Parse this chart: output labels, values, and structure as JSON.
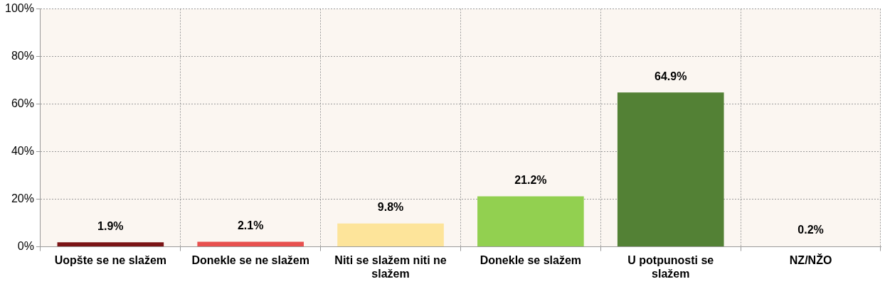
{
  "chart_data": {
    "type": "bar",
    "categories": [
      "Uopšte se ne slažem",
      "Donekle se ne slažem",
      "Niti se slažem niti ne slažem",
      "Donekle se slažem",
      "U potpunosti se slažem",
      "NZ/NŽO"
    ],
    "values": [
      1.9,
      2.1,
      9.8,
      21.2,
      64.9,
      0.2
    ],
    "colors": [
      "#7b1416",
      "#e8504f",
      "#fde49a",
      "#92d050",
      "#538135",
      "#a6a6a6"
    ],
    "value_labels": [
      "1.9%",
      "2.1%",
      "9.8%",
      "21.2%",
      "64.9%",
      "0.2%"
    ],
    "ylim": [
      0,
      100
    ],
    "yticks": [
      {
        "value": 0,
        "label": "0%"
      },
      {
        "value": 20,
        "label": "20%"
      },
      {
        "value": 40,
        "label": "40%"
      },
      {
        "value": 60,
        "label": "60%"
      },
      {
        "value": 80,
        "label": "80%"
      },
      {
        "value": 100,
        "label": "100%"
      }
    ],
    "grid": true,
    "legend": false
  }
}
